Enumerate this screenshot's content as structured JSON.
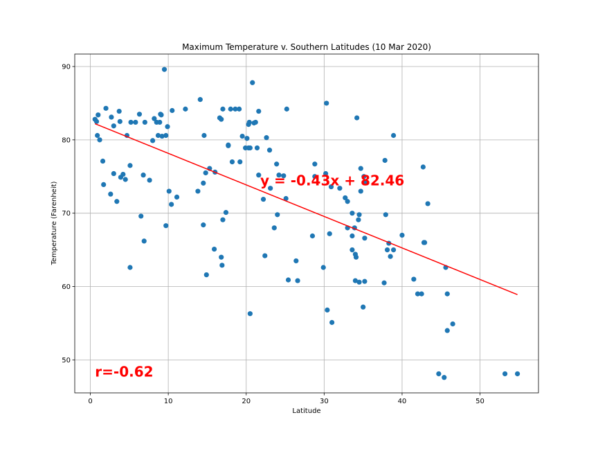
{
  "chart_data": {
    "type": "scatter",
    "title": "Maximum Temperature v. Southern Latitudes (10 Mar 2020)",
    "xlabel": "Latitude",
    "ylabel": "Temperature (Farenheit)",
    "xlim": [
      -2,
      57.5
    ],
    "ylim": [
      45.5,
      91.7
    ],
    "xticks": [
      0,
      10,
      20,
      30,
      40,
      50
    ],
    "yticks": [
      50,
      60,
      70,
      80,
      90
    ],
    "grid": true,
    "marker_color": "#1f77b4",
    "regression": {
      "slope": -0.43,
      "intercept": 82.46,
      "x_range": [
        0.6,
        54.8
      ],
      "color": "#ff0000",
      "equation_label": "y = -0.43x + 82.46",
      "equation_anchor": [
        21.8,
        73.8
      ]
    },
    "r_label": "r=-0.62",
    "r_anchor": [
      0.6,
      47.7
    ],
    "annotation_color": "#ff0000",
    "points": [
      [
        0.6,
        82.8
      ],
      [
        0.8,
        82.5
      ],
      [
        1.0,
        83.4
      ],
      [
        0.9,
        80.6
      ],
      [
        1.2,
        80.0
      ],
      [
        1.6,
        77.1
      ],
      [
        1.7,
        73.9
      ],
      [
        2.0,
        84.3
      ],
      [
        2.6,
        72.6
      ],
      [
        2.7,
        83.1
      ],
      [
        3.0,
        81.9
      ],
      [
        3.0,
        75.4
      ],
      [
        3.4,
        71.6
      ],
      [
        3.7,
        83.9
      ],
      [
        3.8,
        82.5
      ],
      [
        3.9,
        74.9
      ],
      [
        4.2,
        75.3
      ],
      [
        4.5,
        74.6
      ],
      [
        4.7,
        80.6
      ],
      [
        5.1,
        76.5
      ],
      [
        5.2,
        82.4
      ],
      [
        5.1,
        62.6
      ],
      [
        5.8,
        82.4
      ],
      [
        6.3,
        83.5
      ],
      [
        6.5,
        69.6
      ],
      [
        6.8,
        75.2
      ],
      [
        7.0,
        82.4
      ],
      [
        6.9,
        66.2
      ],
      [
        7.6,
        74.5
      ],
      [
        8.0,
        79.9
      ],
      [
        8.2,
        82.9
      ],
      [
        8.5,
        82.4
      ],
      [
        8.9,
        82.4
      ],
      [
        8.7,
        80.6
      ],
      [
        9.0,
        83.5
      ],
      [
        9.1,
        83.4
      ],
      [
        9.2,
        80.5
      ],
      [
        9.5,
        89.6
      ],
      [
        9.7,
        80.6
      ],
      [
        9.7,
        68.3
      ],
      [
        9.9,
        81.8
      ],
      [
        10.1,
        73.0
      ],
      [
        10.4,
        71.2
      ],
      [
        10.5,
        84.0
      ],
      [
        11.1,
        72.2
      ],
      [
        12.2,
        84.2
      ],
      [
        13.8,
        73.0
      ],
      [
        14.1,
        85.5
      ],
      [
        14.5,
        74.1
      ],
      [
        14.6,
        80.6
      ],
      [
        14.5,
        68.4
      ],
      [
        14.8,
        75.5
      ],
      [
        14.9,
        61.6
      ],
      [
        15.3,
        76.1
      ],
      [
        15.9,
        65.1
      ],
      [
        16.0,
        75.6
      ],
      [
        16.6,
        83.0
      ],
      [
        16.8,
        82.8
      ],
      [
        16.8,
        64.0
      ],
      [
        16.9,
        62.9
      ],
      [
        17.0,
        84.2
      ],
      [
        17.0,
        69.1
      ],
      [
        17.4,
        70.1
      ],
      [
        17.7,
        79.2
      ],
      [
        17.7,
        79.3
      ],
      [
        18.0,
        84.2
      ],
      [
        18.2,
        77.0
      ],
      [
        18.6,
        84.2
      ],
      [
        19.1,
        84.2
      ],
      [
        19.2,
        77.0
      ],
      [
        19.5,
        80.5
      ],
      [
        19.9,
        78.9
      ],
      [
        20.1,
        80.2
      ],
      [
        20.3,
        82.1
      ],
      [
        20.3,
        78.9
      ],
      [
        20.4,
        82.4
      ],
      [
        20.5,
        78.9
      ],
      [
        20.5,
        56.3
      ],
      [
        20.8,
        87.8
      ],
      [
        21.0,
        82.3
      ],
      [
        21.2,
        82.4
      ],
      [
        21.4,
        78.9
      ],
      [
        21.6,
        83.9
      ],
      [
        21.6,
        75.2
      ],
      [
        22.2,
        71.9
      ],
      [
        22.4,
        64.2
      ],
      [
        22.6,
        80.3
      ],
      [
        23.0,
        78.6
      ],
      [
        23.1,
        73.4
      ],
      [
        23.6,
        68.0
      ],
      [
        23.9,
        76.7
      ],
      [
        24.0,
        69.8
      ],
      [
        24.2,
        75.2
      ],
      [
        24.8,
        75.1
      ],
      [
        25.1,
        72.0
      ],
      [
        25.2,
        84.2
      ],
      [
        25.4,
        60.9
      ],
      [
        26.4,
        63.5
      ],
      [
        26.6,
        60.8
      ],
      [
        28.5,
        66.9
      ],
      [
        28.8,
        76.7
      ],
      [
        28.8,
        75.0
      ],
      [
        29.9,
        62.6
      ],
      [
        30.2,
        75.4
      ],
      [
        30.3,
        85.0
      ],
      [
        30.4,
        56.8
      ],
      [
        30.7,
        67.2
      ],
      [
        30.9,
        73.6
      ],
      [
        31.0,
        55.1
      ],
      [
        32.0,
        73.4
      ],
      [
        32.7,
        72.1
      ],
      [
        33.0,
        71.6
      ],
      [
        33.0,
        68.0
      ],
      [
        33.6,
        70.0
      ],
      [
        33.6,
        66.9
      ],
      [
        33.6,
        65.0
      ],
      [
        33.9,
        68.0
      ],
      [
        34.0,
        64.4
      ],
      [
        34.1,
        64.0
      ],
      [
        34.0,
        60.8
      ],
      [
        34.2,
        83.0
      ],
      [
        34.4,
        69.1
      ],
      [
        34.5,
        69.8
      ],
      [
        34.5,
        60.6
      ],
      [
        34.7,
        73.0
      ],
      [
        34.7,
        76.1
      ],
      [
        35.0,
        57.2
      ],
      [
        35.1,
        75.0
      ],
      [
        35.2,
        66.6
      ],
      [
        35.3,
        74.2
      ],
      [
        35.2,
        60.7
      ],
      [
        37.7,
        60.5
      ],
      [
        37.8,
        77.2
      ],
      [
        37.9,
        69.8
      ],
      [
        38.1,
        65.0
      ],
      [
        38.3,
        65.9
      ],
      [
        38.5,
        64.1
      ],
      [
        38.9,
        80.6
      ],
      [
        38.9,
        65.0
      ],
      [
        40.0,
        67.0
      ],
      [
        41.5,
        61.0
      ],
      [
        42.0,
        59.0
      ],
      [
        42.5,
        59.0
      ],
      [
        42.7,
        76.3
      ],
      [
        42.8,
        66.0
      ],
      [
        42.9,
        66.0
      ],
      [
        43.3,
        71.3
      ],
      [
        44.7,
        48.1
      ],
      [
        45.4,
        47.6
      ],
      [
        45.6,
        62.6
      ],
      [
        45.8,
        54.0
      ],
      [
        45.8,
        59.0
      ],
      [
        46.5,
        54.9
      ],
      [
        53.2,
        48.1
      ],
      [
        54.8,
        48.1
      ]
    ]
  }
}
